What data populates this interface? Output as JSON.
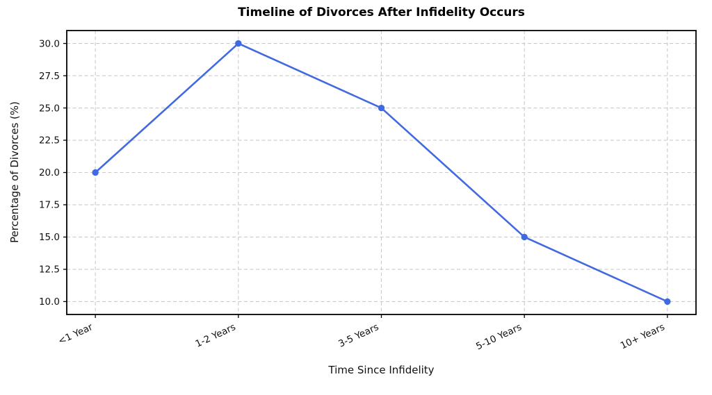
{
  "chart_data": {
    "type": "line",
    "title": "Timeline of Divorces After Infidelity Occurs",
    "xlabel": "Time Since Infidelity",
    "ylabel": "Percentage of Divorces (%)",
    "categories": [
      "<1 Year",
      "1-2 Years",
      "3-5 Years",
      "5-10 Years",
      "10+ Years"
    ],
    "series": [
      {
        "name": "Percentage of Divorces",
        "values": [
          20.0,
          30.0,
          25.0,
          15.0,
          10.0
        ]
      }
    ],
    "yticks": [
      10.0,
      12.5,
      15.0,
      17.5,
      20.0,
      22.5,
      25.0,
      27.5,
      30.0
    ],
    "ytick_labels": [
      "10.0",
      "12.5",
      "15.0",
      "17.5",
      "20.0",
      "22.5",
      "25.0",
      "27.5",
      "30.0"
    ],
    "ylim": [
      9.0,
      31.0
    ],
    "xlim": [
      -0.2,
      4.2
    ],
    "grid": true,
    "grid_style": "dashed",
    "grid_color": "#c9c9c9",
    "line_color": "#4169E1",
    "marker": "circle",
    "x_tick_rotation_deg": 25,
    "spine_color": "#000000",
    "tick_label_color": "#111111",
    "background": "#ffffff",
    "legend": "none"
  }
}
